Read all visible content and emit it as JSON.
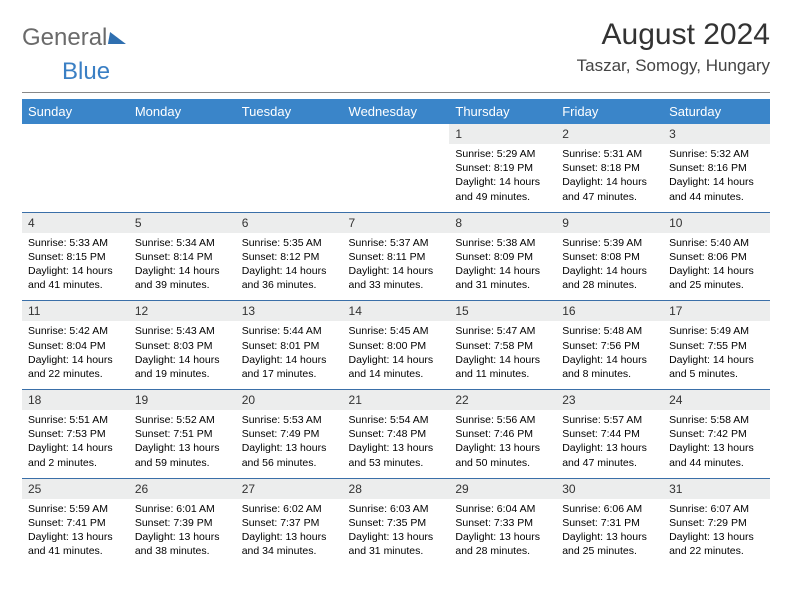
{
  "brand": {
    "part1": "General",
    "part2": "Blue"
  },
  "title": "August 2024",
  "location": "Taszar, Somogy, Hungary",
  "colors": {
    "header_bg": "#3a85c9",
    "header_text": "#ffffff",
    "daynum_bg": "#eceded",
    "row_border": "#3a6fa8",
    "title_rule": "#888888",
    "brand_gray": "#6a6a6a",
    "brand_blue": "#3a7fc4"
  },
  "typography": {
    "month_title_size": 30,
    "location_size": 17,
    "th_size": 13,
    "daynum_size": 12,
    "body_size": 10.5
  },
  "weekdays": [
    "Sunday",
    "Monday",
    "Tuesday",
    "Wednesday",
    "Thursday",
    "Friday",
    "Saturday"
  ],
  "weeks": [
    [
      null,
      null,
      null,
      null,
      {
        "n": "1",
        "sr": "Sunrise: 5:29 AM",
        "ss": "Sunset: 8:19 PM",
        "dl": "Daylight: 14 hours and 49 minutes."
      },
      {
        "n": "2",
        "sr": "Sunrise: 5:31 AM",
        "ss": "Sunset: 8:18 PM",
        "dl": "Daylight: 14 hours and 47 minutes."
      },
      {
        "n": "3",
        "sr": "Sunrise: 5:32 AM",
        "ss": "Sunset: 8:16 PM",
        "dl": "Daylight: 14 hours and 44 minutes."
      }
    ],
    [
      {
        "n": "4",
        "sr": "Sunrise: 5:33 AM",
        "ss": "Sunset: 8:15 PM",
        "dl": "Daylight: 14 hours and 41 minutes."
      },
      {
        "n": "5",
        "sr": "Sunrise: 5:34 AM",
        "ss": "Sunset: 8:14 PM",
        "dl": "Daylight: 14 hours and 39 minutes."
      },
      {
        "n": "6",
        "sr": "Sunrise: 5:35 AM",
        "ss": "Sunset: 8:12 PM",
        "dl": "Daylight: 14 hours and 36 minutes."
      },
      {
        "n": "7",
        "sr": "Sunrise: 5:37 AM",
        "ss": "Sunset: 8:11 PM",
        "dl": "Daylight: 14 hours and 33 minutes."
      },
      {
        "n": "8",
        "sr": "Sunrise: 5:38 AM",
        "ss": "Sunset: 8:09 PM",
        "dl": "Daylight: 14 hours and 31 minutes."
      },
      {
        "n": "9",
        "sr": "Sunrise: 5:39 AM",
        "ss": "Sunset: 8:08 PM",
        "dl": "Daylight: 14 hours and 28 minutes."
      },
      {
        "n": "10",
        "sr": "Sunrise: 5:40 AM",
        "ss": "Sunset: 8:06 PM",
        "dl": "Daylight: 14 hours and 25 minutes."
      }
    ],
    [
      {
        "n": "11",
        "sr": "Sunrise: 5:42 AM",
        "ss": "Sunset: 8:04 PM",
        "dl": "Daylight: 14 hours and 22 minutes."
      },
      {
        "n": "12",
        "sr": "Sunrise: 5:43 AM",
        "ss": "Sunset: 8:03 PM",
        "dl": "Daylight: 14 hours and 19 minutes."
      },
      {
        "n": "13",
        "sr": "Sunrise: 5:44 AM",
        "ss": "Sunset: 8:01 PM",
        "dl": "Daylight: 14 hours and 17 minutes."
      },
      {
        "n": "14",
        "sr": "Sunrise: 5:45 AM",
        "ss": "Sunset: 8:00 PM",
        "dl": "Daylight: 14 hours and 14 minutes."
      },
      {
        "n": "15",
        "sr": "Sunrise: 5:47 AM",
        "ss": "Sunset: 7:58 PM",
        "dl": "Daylight: 14 hours and 11 minutes."
      },
      {
        "n": "16",
        "sr": "Sunrise: 5:48 AM",
        "ss": "Sunset: 7:56 PM",
        "dl": "Daylight: 14 hours and 8 minutes."
      },
      {
        "n": "17",
        "sr": "Sunrise: 5:49 AM",
        "ss": "Sunset: 7:55 PM",
        "dl": "Daylight: 14 hours and 5 minutes."
      }
    ],
    [
      {
        "n": "18",
        "sr": "Sunrise: 5:51 AM",
        "ss": "Sunset: 7:53 PM",
        "dl": "Daylight: 14 hours and 2 minutes."
      },
      {
        "n": "19",
        "sr": "Sunrise: 5:52 AM",
        "ss": "Sunset: 7:51 PM",
        "dl": "Daylight: 13 hours and 59 minutes."
      },
      {
        "n": "20",
        "sr": "Sunrise: 5:53 AM",
        "ss": "Sunset: 7:49 PM",
        "dl": "Daylight: 13 hours and 56 minutes."
      },
      {
        "n": "21",
        "sr": "Sunrise: 5:54 AM",
        "ss": "Sunset: 7:48 PM",
        "dl": "Daylight: 13 hours and 53 minutes."
      },
      {
        "n": "22",
        "sr": "Sunrise: 5:56 AM",
        "ss": "Sunset: 7:46 PM",
        "dl": "Daylight: 13 hours and 50 minutes."
      },
      {
        "n": "23",
        "sr": "Sunrise: 5:57 AM",
        "ss": "Sunset: 7:44 PM",
        "dl": "Daylight: 13 hours and 47 minutes."
      },
      {
        "n": "24",
        "sr": "Sunrise: 5:58 AM",
        "ss": "Sunset: 7:42 PM",
        "dl": "Daylight: 13 hours and 44 minutes."
      }
    ],
    [
      {
        "n": "25",
        "sr": "Sunrise: 5:59 AM",
        "ss": "Sunset: 7:41 PM",
        "dl": "Daylight: 13 hours and 41 minutes."
      },
      {
        "n": "26",
        "sr": "Sunrise: 6:01 AM",
        "ss": "Sunset: 7:39 PM",
        "dl": "Daylight: 13 hours and 38 minutes."
      },
      {
        "n": "27",
        "sr": "Sunrise: 6:02 AM",
        "ss": "Sunset: 7:37 PM",
        "dl": "Daylight: 13 hours and 34 minutes."
      },
      {
        "n": "28",
        "sr": "Sunrise: 6:03 AM",
        "ss": "Sunset: 7:35 PM",
        "dl": "Daylight: 13 hours and 31 minutes."
      },
      {
        "n": "29",
        "sr": "Sunrise: 6:04 AM",
        "ss": "Sunset: 7:33 PM",
        "dl": "Daylight: 13 hours and 28 minutes."
      },
      {
        "n": "30",
        "sr": "Sunrise: 6:06 AM",
        "ss": "Sunset: 7:31 PM",
        "dl": "Daylight: 13 hours and 25 minutes."
      },
      {
        "n": "31",
        "sr": "Sunrise: 6:07 AM",
        "ss": "Sunset: 7:29 PM",
        "dl": "Daylight: 13 hours and 22 minutes."
      }
    ]
  ]
}
